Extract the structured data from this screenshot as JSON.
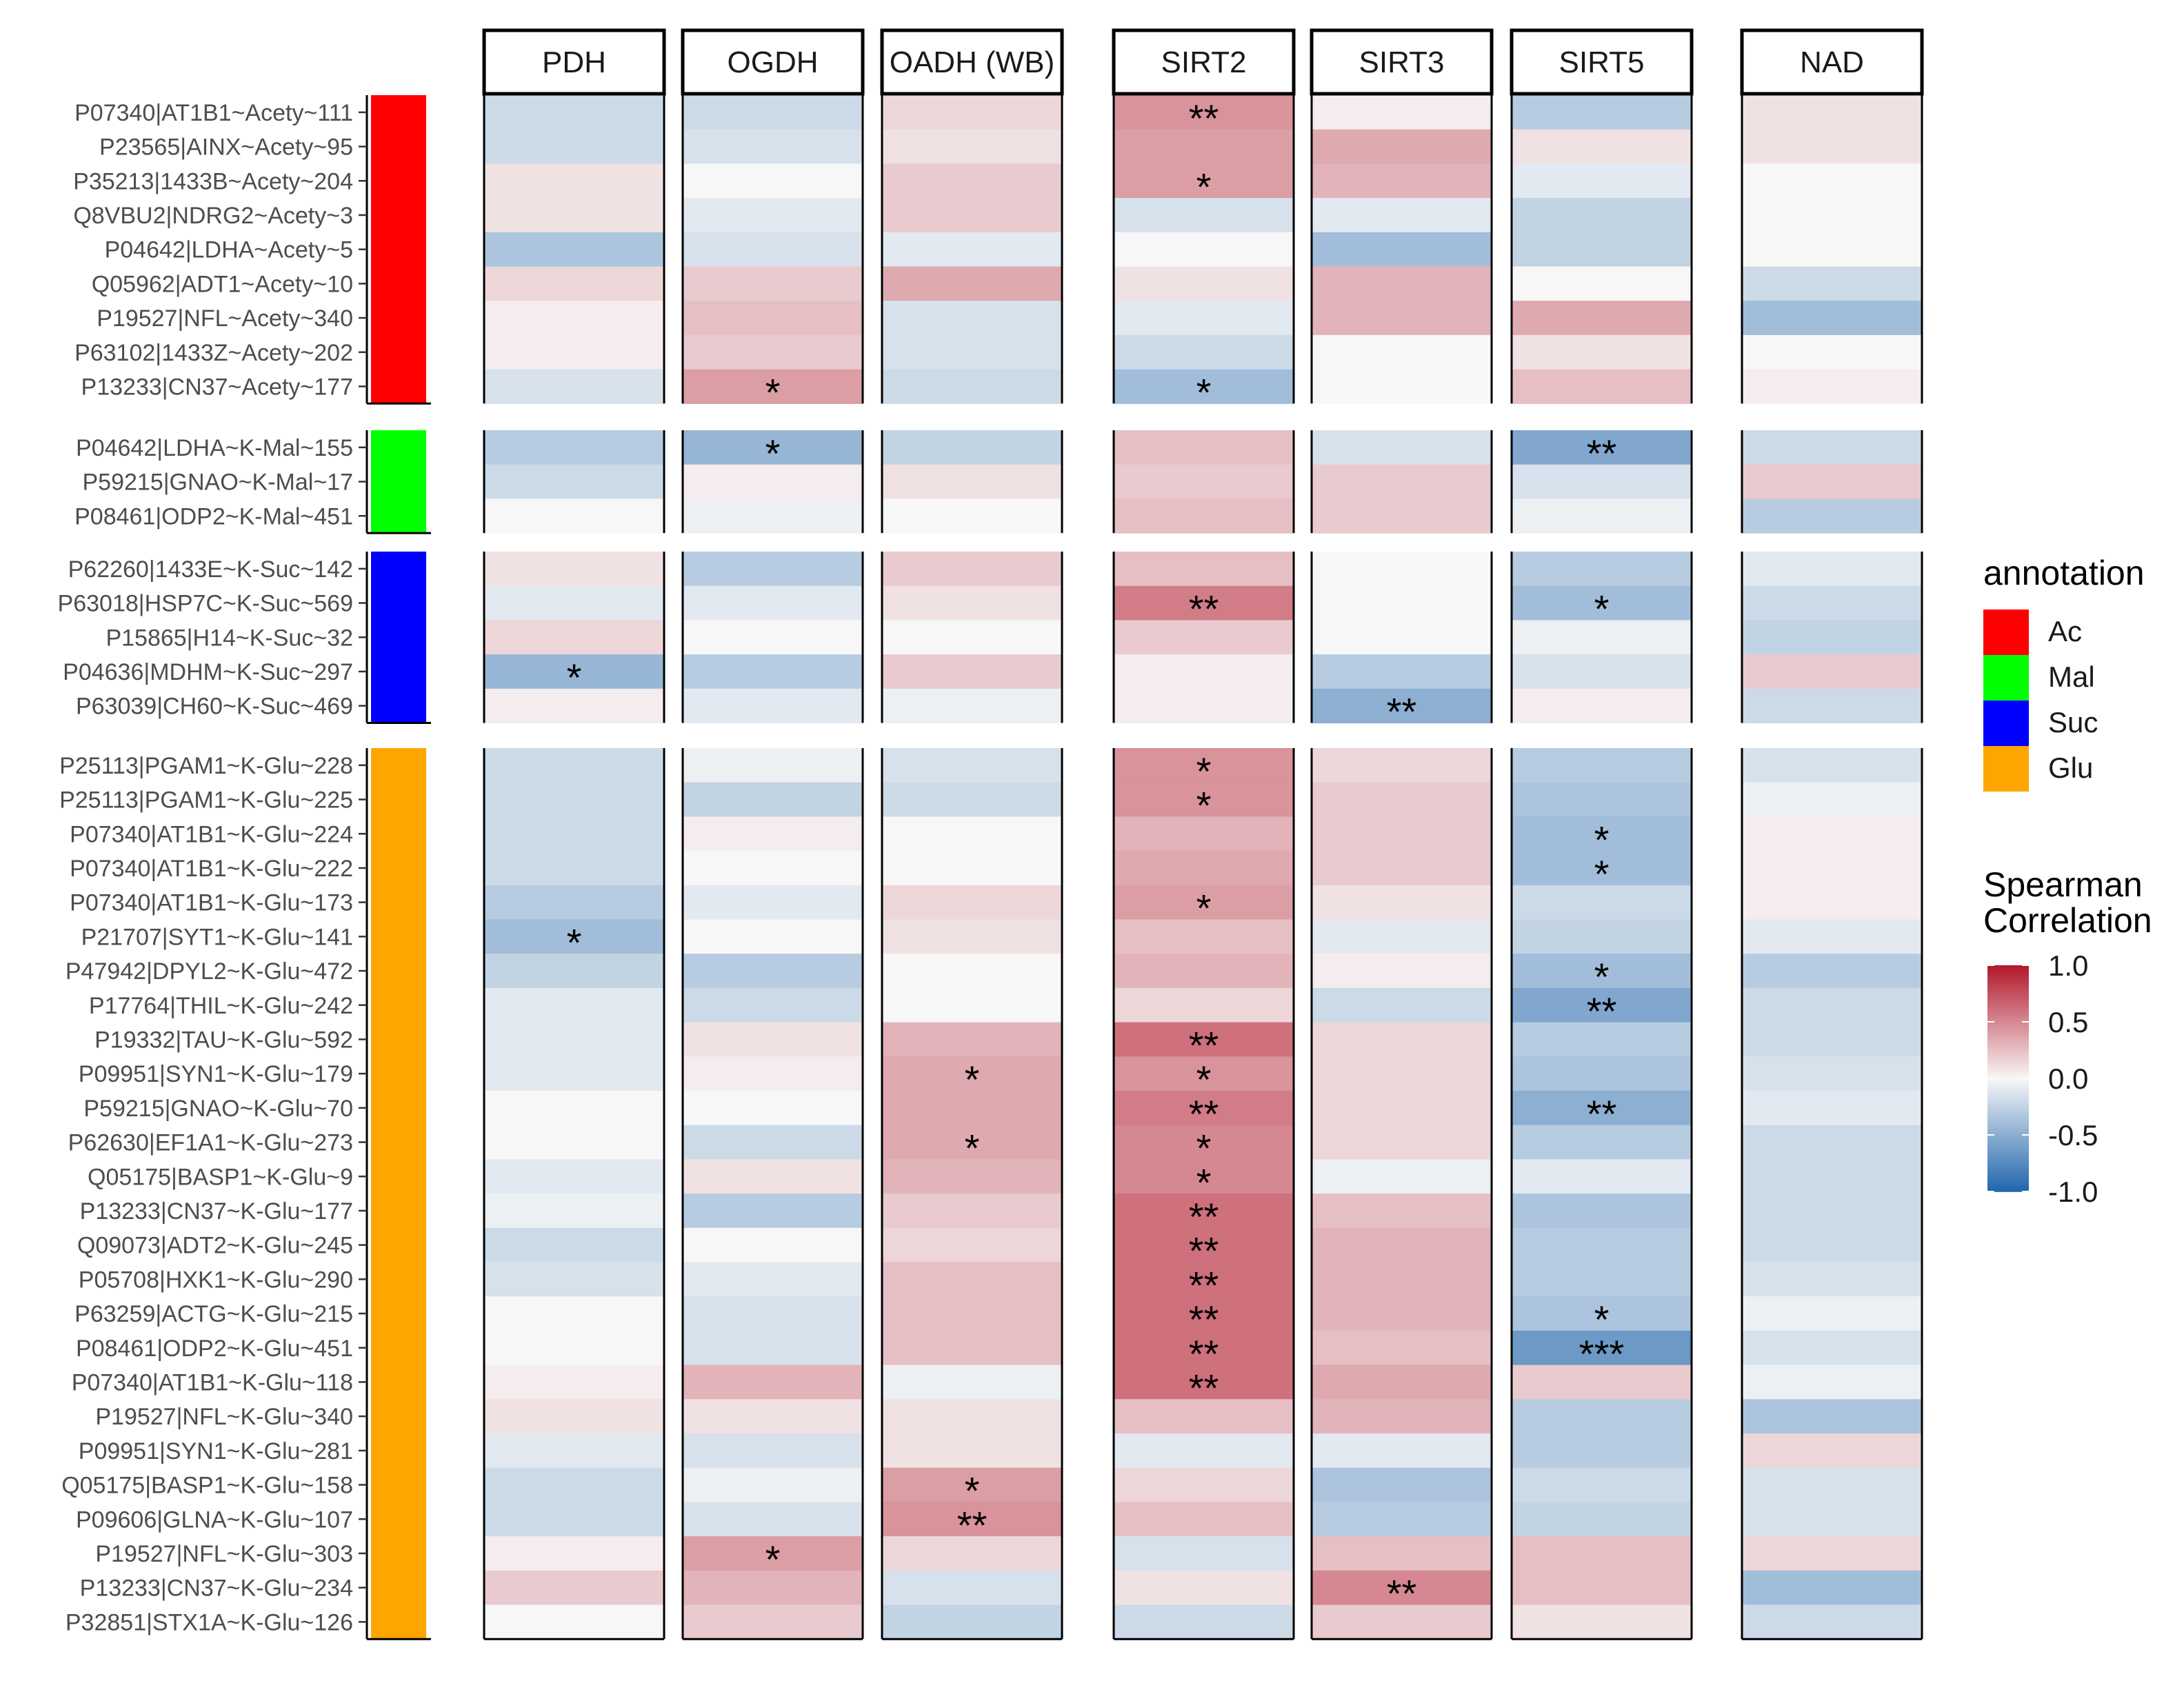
{
  "chart_data": {
    "type": "heatmap",
    "columns": [
      "PDH",
      "OGDH",
      "OADH (WB)",
      "SIRT2",
      "SIRT3",
      "SIRT5",
      "NAD"
    ],
    "column_groups": [
      [
        0,
        1,
        2
      ],
      [
        3,
        4,
        5
      ],
      [
        6
      ]
    ],
    "row_groups": [
      {
        "annotation": "Ac",
        "color": "#ff0000",
        "rows": [
          {
            "label": "P07340|AT1B1~Acety~111",
            "values": [
              -0.2,
              -0.2,
              0.15,
              0.45,
              0.05,
              -0.3,
              0.1
            ],
            "sig": [
              "",
              "",
              "",
              "**",
              "",
              "",
              ""
            ]
          },
          {
            "label": "P23565|AINX~Acety~95",
            "values": [
              -0.2,
              -0.15,
              0.1,
              0.4,
              0.35,
              0.1,
              0.1
            ],
            "sig": [
              "",
              "",
              "",
              "",
              "",
              "",
              ""
            ]
          },
          {
            "label": "P35213|1433B~Acety~204",
            "values": [
              0.1,
              0.0,
              0.2,
              0.4,
              0.3,
              -0.1,
              0.0
            ],
            "sig": [
              "",
              "",
              "",
              "*",
              "",
              "",
              ""
            ]
          },
          {
            "label": "Q8VBU2|NDRG2~Acety~3",
            "values": [
              0.1,
              -0.1,
              0.2,
              -0.15,
              -0.1,
              -0.25,
              0.0
            ],
            "sig": [
              "",
              "",
              "",
              "",
              "",
              "",
              ""
            ]
          },
          {
            "label": "P04642|LDHA~Acety~5",
            "values": [
              -0.35,
              -0.15,
              -0.1,
              0.0,
              -0.4,
              -0.25,
              0.0
            ],
            "sig": [
              "",
              "",
              "",
              "",
              "",
              "",
              ""
            ]
          },
          {
            "label": "Q05962|ADT1~Acety~10",
            "values": [
              0.15,
              0.2,
              0.35,
              0.1,
              0.3,
              0.0,
              -0.2
            ],
            "sig": [
              "",
              "",
              "",
              "",
              "",
              "",
              ""
            ]
          },
          {
            "label": "P19527|NFL~Acety~340",
            "values": [
              0.05,
              0.25,
              -0.15,
              -0.1,
              0.3,
              0.35,
              -0.4
            ],
            "sig": [
              "",
              "",
              "",
              "",
              "",
              "",
              ""
            ]
          },
          {
            "label": "P63102|1433Z~Acety~202",
            "values": [
              0.05,
              0.2,
              -0.15,
              -0.2,
              0.0,
              0.1,
              0.0
            ],
            "sig": [
              "",
              "",
              "",
              "",
              "",
              "",
              ""
            ]
          },
          {
            "label": "P13233|CN37~Acety~177",
            "values": [
              -0.15,
              0.4,
              -0.2,
              -0.4,
              0.0,
              0.25,
              0.05
            ],
            "sig": [
              "",
              "*",
              "",
              "*",
              "",
              "",
              ""
            ]
          }
        ]
      },
      {
        "annotation": "Mal",
        "color": "#00ff00",
        "rows": [
          {
            "label": "P04642|LDHA~K-Mal~155",
            "values": [
              -0.3,
              -0.45,
              -0.25,
              0.25,
              -0.15,
              -0.55,
              -0.2
            ],
            "sig": [
              "",
              "*",
              "",
              "",
              "",
              "**",
              ""
            ]
          },
          {
            "label": "P59215|GNAO~K-Mal~17",
            "values": [
              -0.2,
              0.05,
              0.1,
              0.2,
              0.2,
              -0.15,
              0.2
            ],
            "sig": [
              "",
              "",
              "",
              "",
              "",
              "",
              ""
            ]
          },
          {
            "label": "P08461|ODP2~K-Mal~451",
            "values": [
              0.0,
              -0.05,
              0.0,
              0.25,
              0.2,
              -0.05,
              -0.3
            ],
            "sig": [
              "",
              "",
              "",
              "",
              "",
              "",
              ""
            ]
          }
        ]
      },
      {
        "annotation": "Suc",
        "color": "#0000ff",
        "rows": [
          {
            "label": "P62260|1433E~K-Suc~142",
            "values": [
              0.1,
              -0.3,
              0.2,
              0.25,
              0.0,
              -0.3,
              -0.1
            ],
            "sig": [
              "",
              "",
              "",
              "",
              "",
              "",
              ""
            ]
          },
          {
            "label": "P63018|HSP7C~K-Suc~569",
            "values": [
              -0.1,
              -0.1,
              0.1,
              0.55,
              0.0,
              -0.4,
              -0.2
            ],
            "sig": [
              "",
              "",
              "",
              "**",
              "",
              "*",
              ""
            ]
          },
          {
            "label": "P15865|H14~K-Suc~32",
            "values": [
              0.15,
              0.0,
              0.0,
              0.2,
              0.0,
              -0.05,
              -0.25
            ],
            "sig": [
              "",
              "",
              "",
              "",
              "",
              "",
              ""
            ]
          },
          {
            "label": "P04636|MDHM~K-Suc~297",
            "values": [
              -0.45,
              -0.3,
              0.2,
              0.05,
              -0.3,
              -0.15,
              0.2
            ],
            "sig": [
              "*",
              "",
              "",
              "",
              "",
              "",
              ""
            ]
          },
          {
            "label": "P63039|CH60~K-Suc~469",
            "values": [
              0.05,
              -0.1,
              -0.05,
              0.05,
              -0.5,
              0.05,
              -0.2
            ],
            "sig": [
              "",
              "",
              "",
              "",
              "**",
              "",
              ""
            ]
          }
        ]
      },
      {
        "annotation": "Glu",
        "color": "#ffa500",
        "rows": [
          {
            "label": "P25113|PGAM1~K-Glu~228",
            "values": [
              -0.2,
              -0.05,
              -0.15,
              0.45,
              0.15,
              -0.3,
              -0.15
            ],
            "sig": [
              "",
              "",
              "",
              "*",
              "",
              "",
              ""
            ]
          },
          {
            "label": "P25113|PGAM1~K-Glu~225",
            "values": [
              -0.2,
              -0.25,
              -0.2,
              0.45,
              0.2,
              -0.35,
              -0.05
            ],
            "sig": [
              "",
              "",
              "",
              "*",
              "",
              "",
              ""
            ]
          },
          {
            "label": "P07340|AT1B1~K-Glu~224",
            "values": [
              -0.2,
              0.05,
              0.0,
              0.3,
              0.2,
              -0.4,
              0.05
            ],
            "sig": [
              "",
              "",
              "",
              "",
              "",
              "*",
              ""
            ]
          },
          {
            "label": "P07340|AT1B1~K-Glu~222",
            "values": [
              -0.2,
              0.0,
              0.0,
              0.35,
              0.2,
              -0.4,
              0.05
            ],
            "sig": [
              "",
              "",
              "",
              "",
              "",
              "*",
              ""
            ]
          },
          {
            "label": "P07340|AT1B1~K-Glu~173",
            "values": [
              -0.3,
              -0.1,
              0.15,
              0.4,
              0.1,
              -0.2,
              0.05
            ],
            "sig": [
              "",
              "",
              "",
              "*",
              "",
              "",
              ""
            ]
          },
          {
            "label": "P21707|SYT1~K-Glu~141",
            "values": [
              -0.4,
              0.0,
              0.1,
              0.25,
              -0.1,
              -0.25,
              -0.1
            ],
            "sig": [
              "*",
              "",
              "",
              "",
              "",
              "",
              ""
            ]
          },
          {
            "label": "P47942|DPYL2~K-Glu~472",
            "values": [
              -0.25,
              -0.3,
              0.0,
              0.3,
              0.05,
              -0.4,
              -0.3
            ],
            "sig": [
              "",
              "",
              "",
              "",
              "",
              "*",
              ""
            ]
          },
          {
            "label": "P17764|THIL~K-Glu~242",
            "values": [
              -0.1,
              -0.2,
              0.0,
              0.15,
              -0.2,
              -0.55,
              -0.2
            ],
            "sig": [
              "",
              "",
              "",
              "",
              "",
              "**",
              ""
            ]
          },
          {
            "label": "P19332|TAU~K-Glu~592",
            "values": [
              -0.1,
              0.1,
              0.3,
              0.6,
              0.15,
              -0.3,
              -0.2
            ],
            "sig": [
              "",
              "",
              "",
              "**",
              "",
              "",
              ""
            ]
          },
          {
            "label": "P09951|SYN1~K-Glu~179",
            "values": [
              -0.1,
              0.05,
              0.35,
              0.45,
              0.15,
              -0.35,
              -0.15
            ],
            "sig": [
              "",
              "",
              "*",
              "*",
              "",
              "",
              ""
            ]
          },
          {
            "label": "P59215|GNAO~K-Glu~70",
            "values": [
              0.0,
              0.0,
              0.35,
              0.55,
              0.15,
              -0.5,
              -0.1
            ],
            "sig": [
              "",
              "",
              "",
              "**",
              "",
              "**",
              ""
            ]
          },
          {
            "label": "P62630|EF1A1~K-Glu~273",
            "values": [
              0.0,
              -0.2,
              0.35,
              0.5,
              0.15,
              -0.3,
              -0.2
            ],
            "sig": [
              "",
              "",
              "*",
              "*",
              "",
              "",
              ""
            ]
          },
          {
            "label": "Q05175|BASP1~K-Glu~9",
            "values": [
              -0.1,
              0.1,
              0.3,
              0.5,
              -0.05,
              -0.1,
              -0.2
            ],
            "sig": [
              "",
              "",
              "",
              "*",
              "",
              "",
              ""
            ]
          },
          {
            "label": "P13233|CN37~K-Glu~177",
            "values": [
              -0.05,
              -0.3,
              0.2,
              0.6,
              0.25,
              -0.35,
              -0.2
            ],
            "sig": [
              "",
              "",
              "",
              "**",
              "",
              "",
              ""
            ]
          },
          {
            "label": "Q09073|ADT2~K-Glu~245",
            "values": [
              -0.2,
              0.0,
              0.15,
              0.6,
              0.3,
              -0.3,
              -0.2
            ],
            "sig": [
              "",
              "",
              "",
              "**",
              "",
              "",
              ""
            ]
          },
          {
            "label": "P05708|HXK1~K-Glu~290",
            "values": [
              -0.15,
              -0.1,
              0.25,
              0.6,
              0.3,
              -0.3,
              -0.15
            ],
            "sig": [
              "",
              "",
              "",
              "**",
              "",
              "",
              ""
            ]
          },
          {
            "label": "P63259|ACTG~K-Glu~215",
            "values": [
              0.0,
              -0.15,
              0.25,
              0.6,
              0.3,
              -0.35,
              -0.05
            ],
            "sig": [
              "",
              "",
              "",
              "**",
              "",
              "*",
              ""
            ]
          },
          {
            "label": "P08461|ODP2~K-Glu~451",
            "values": [
              0.0,
              -0.15,
              0.25,
              0.6,
              0.25,
              -0.65,
              -0.15
            ],
            "sig": [
              "",
              "",
              "",
              "**",
              "",
              "***",
              ""
            ]
          },
          {
            "label": "P07340|AT1B1~K-Glu~118",
            "values": [
              0.05,
              0.3,
              -0.05,
              0.6,
              0.35,
              0.2,
              -0.05
            ],
            "sig": [
              "",
              "",
              "",
              "**",
              "",
              "",
              ""
            ]
          },
          {
            "label": "P19527|NFL~K-Glu~340",
            "values": [
              0.1,
              0.1,
              0.1,
              0.25,
              0.3,
              -0.3,
              -0.35
            ],
            "sig": [
              "",
              "",
              "",
              "",
              "",
              "",
              ""
            ]
          },
          {
            "label": "P09951|SYN1~K-Glu~281",
            "values": [
              -0.1,
              -0.15,
              0.1,
              -0.1,
              -0.1,
              -0.3,
              0.15
            ],
            "sig": [
              "",
              "",
              "",
              "",
              "",
              "",
              ""
            ]
          },
          {
            "label": "Q05175|BASP1~K-Glu~158",
            "values": [
              -0.2,
              -0.05,
              0.4,
              0.15,
              -0.35,
              -0.2,
              -0.15
            ],
            "sig": [
              "",
              "",
              "*",
              "",
              "",
              "",
              ""
            ]
          },
          {
            "label": "P09606|GLNA~K-Glu~107",
            "values": [
              -0.2,
              -0.15,
              0.45,
              0.25,
              -0.3,
              -0.25,
              -0.15
            ],
            "sig": [
              "",
              "",
              "**",
              "",
              "",
              "",
              ""
            ]
          },
          {
            "label": "P19527|NFL~K-Glu~303",
            "values": [
              0.05,
              0.4,
              0.15,
              -0.15,
              0.25,
              0.25,
              0.15
            ],
            "sig": [
              "",
              "*",
              "",
              "",
              "",
              "",
              ""
            ]
          },
          {
            "label": "P13233|CN37~K-Glu~234",
            "values": [
              0.2,
              0.3,
              -0.15,
              0.1,
              0.5,
              0.25,
              -0.4
            ],
            "sig": [
              "",
              "",
              "",
              "",
              "**",
              "",
              ""
            ]
          },
          {
            "label": "P32851|STX1A~K-Glu~126",
            "values": [
              0.0,
              0.2,
              -0.25,
              -0.2,
              0.2,
              0.1,
              -0.2
            ],
            "sig": [
              "",
              "",
              "",
              "",
              "",
              "",
              ""
            ]
          }
        ]
      }
    ],
    "legend": {
      "annotation_title": "annotation",
      "annotation_entries": [
        {
          "label": "Ac",
          "color": "#ff0000"
        },
        {
          "label": "Mal",
          "color": "#00ff00"
        },
        {
          "label": "Suc",
          "color": "#0000ff"
        },
        {
          "label": "Glu",
          "color": "#ffa500"
        }
      ],
      "colorbar_title_lines": [
        "Spearman",
        "Correlation"
      ],
      "colorbar_range": [
        -1.0,
        1.0
      ],
      "colorbar_ticks": [
        "1.0",
        "0.5",
        "0.0",
        "-0.5",
        "-1.0"
      ],
      "colorbar_tick_values": [
        1.0,
        0.5,
        0.0,
        -0.5,
        -1.0
      ],
      "placement": "right"
    },
    "color_scale": {
      "low": "#2166ac",
      "mid": "#f7f7f7",
      "high": "#b2182b"
    }
  }
}
